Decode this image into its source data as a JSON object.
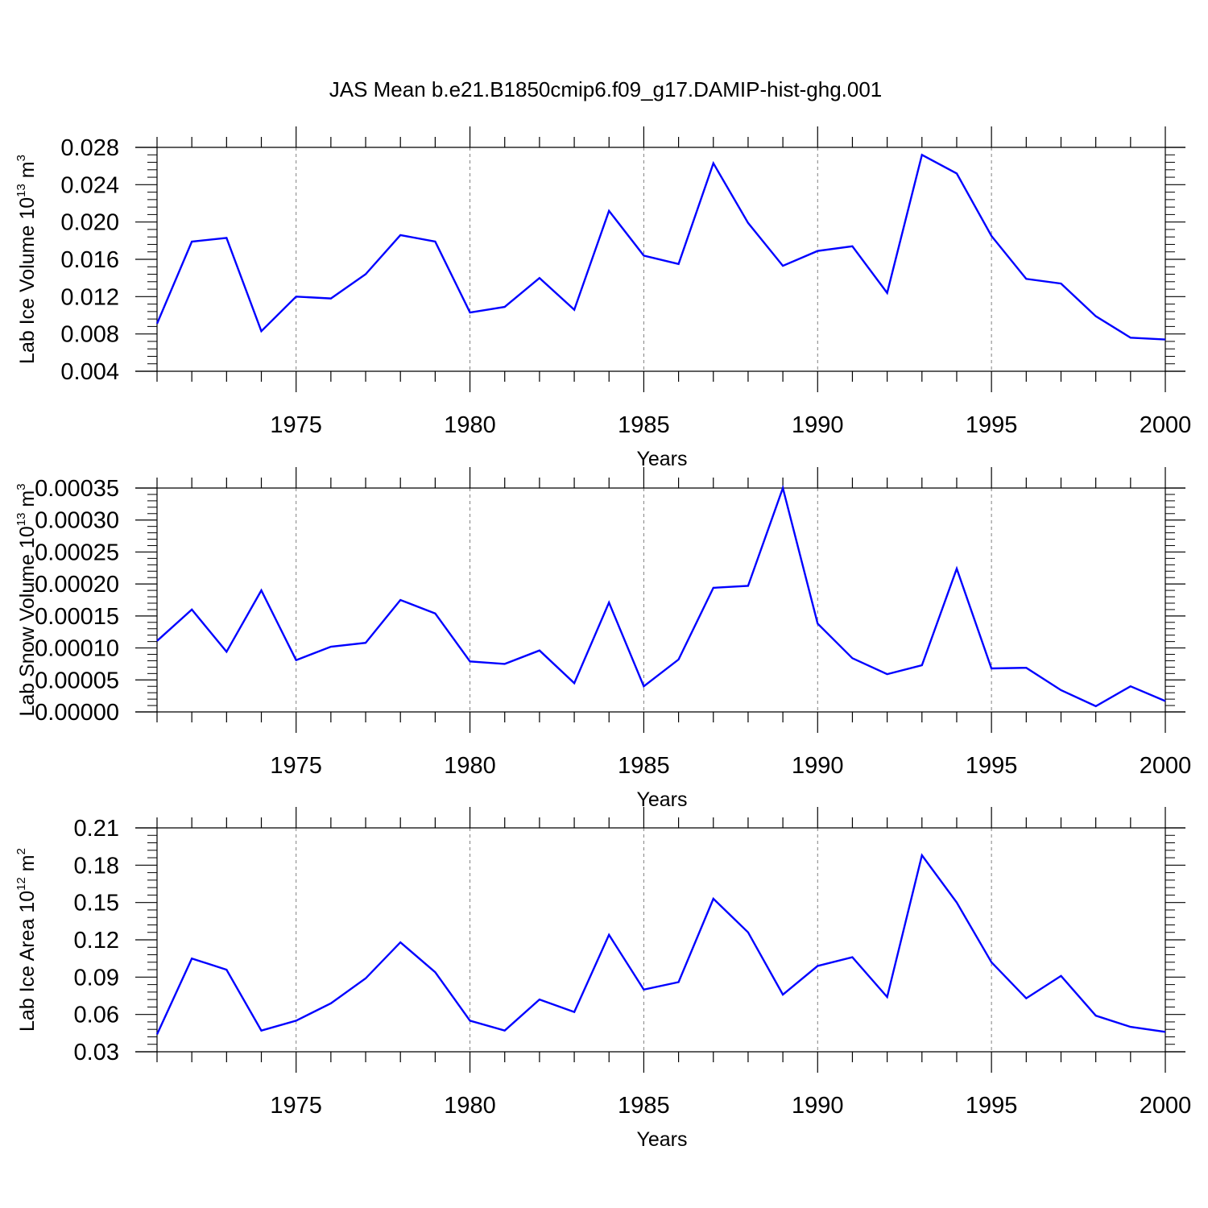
{
  "title": "JAS Mean b.e21.B1850cmip6.f09_g17.DAMIP-hist-ghg.001",
  "colors": {
    "line": "#0000ff",
    "axis": "#000000",
    "grid": "#808080"
  },
  "chart_data": [
    {
      "type": "line",
      "ylabel_prefix": "Lab Ice Volume 10",
      "ylabel_exp": "13",
      "ylabel_unit": " m",
      "ylabel_unit_exp": "3",
      "xlabel": "Years",
      "xlim": [
        1971,
        2000
      ],
      "ylim": [
        0.004,
        0.028
      ],
      "yticks": [
        "0.004",
        "0.008",
        "0.012",
        "0.016",
        "0.020",
        "0.024",
        "0.028"
      ],
      "xticks": [
        "1975",
        "1980",
        "1985",
        "1990",
        "1995",
        "2000"
      ],
      "grid": "vertical dashed at labeled years",
      "x": [
        1971,
        1972,
        1973,
        1974,
        1975,
        1976,
        1977,
        1978,
        1979,
        1980,
        1981,
        1982,
        1983,
        1984,
        1985,
        1986,
        1987,
        1988,
        1989,
        1990,
        1991,
        1992,
        1993,
        1994,
        1995,
        1996,
        1997,
        1998,
        1999,
        2000
      ],
      "values": [
        0.0091,
        0.0179,
        0.0183,
        0.0083,
        0.012,
        0.0118,
        0.0144,
        0.0186,
        0.0179,
        0.0103,
        0.0109,
        0.014,
        0.0106,
        0.0212,
        0.0164,
        0.0155,
        0.0263,
        0.0199,
        0.0153,
        0.0169,
        0.0174,
        0.0124,
        0.0272,
        0.0252,
        0.0185,
        0.0139,
        0.0134,
        0.0099,
        0.0076,
        0.0074
      ]
    },
    {
      "type": "line",
      "ylabel_prefix": "Lab Snow Volume 10",
      "ylabel_exp": "13",
      "ylabel_unit": " m",
      "ylabel_unit_exp": "3",
      "xlabel": "Years",
      "xlim": [
        1971,
        2000
      ],
      "ylim": [
        0.0,
        0.00035
      ],
      "yticks": [
        "0.00000",
        "0.00005",
        "0.00010",
        "0.00015",
        "0.00020",
        "0.00025",
        "0.00030",
        "0.00035"
      ],
      "xticks": [
        "1975",
        "1980",
        "1985",
        "1990",
        "1995",
        "2000"
      ],
      "grid": "vertical dashed at labeled years",
      "x": [
        1971,
        1972,
        1973,
        1974,
        1975,
        1976,
        1977,
        1978,
        1979,
        1980,
        1981,
        1982,
        1983,
        1984,
        1985,
        1986,
        1987,
        1988,
        1989,
        1990,
        1991,
        1992,
        1993,
        1994,
        1995,
        1996,
        1997,
        1998,
        1999,
        2000
      ],
      "values": [
        0.000111,
        0.00016,
        9.4e-05,
        0.00019,
        8.1e-05,
        0.000102,
        0.000108,
        0.000175,
        0.000154,
        7.9e-05,
        7.5e-05,
        9.6e-05,
        4.5e-05,
        0.000171,
        4e-05,
        8.2e-05,
        0.000194,
        0.000197,
        0.00035,
        0.000138,
        8.4e-05,
        5.9e-05,
        7.3e-05,
        0.000224,
        6.8e-05,
        6.9e-05,
        3.4e-05,
        9e-06,
        4e-05,
        1.7e-05
      ]
    },
    {
      "type": "line",
      "ylabel_prefix": "Lab Ice Area 10",
      "ylabel_exp": "12",
      "ylabel_unit": " m",
      "ylabel_unit_exp": "2",
      "xlabel": "Years",
      "xlim": [
        1971,
        2000
      ],
      "ylim": [
        0.03,
        0.21
      ],
      "yticks": [
        "0.03",
        "0.06",
        "0.09",
        "0.12",
        "0.15",
        "0.18",
        "0.21"
      ],
      "xticks": [
        "1975",
        "1980",
        "1985",
        "1990",
        "1995",
        "2000"
      ],
      "grid": "vertical dashed at labeled years",
      "x": [
        1971,
        1972,
        1973,
        1974,
        1975,
        1976,
        1977,
        1978,
        1979,
        1980,
        1981,
        1982,
        1983,
        1984,
        1985,
        1986,
        1987,
        1988,
        1989,
        1990,
        1991,
        1992,
        1993,
        1994,
        1995,
        1996,
        1997,
        1998,
        1999,
        2000
      ],
      "values": [
        0.044,
        0.105,
        0.096,
        0.047,
        0.055,
        0.069,
        0.089,
        0.118,
        0.094,
        0.055,
        0.047,
        0.072,
        0.062,
        0.124,
        0.08,
        0.086,
        0.153,
        0.126,
        0.076,
        0.099,
        0.106,
        0.074,
        0.188,
        0.15,
        0.102,
        0.073,
        0.091,
        0.059,
        0.05,
        0.046
      ]
    }
  ]
}
